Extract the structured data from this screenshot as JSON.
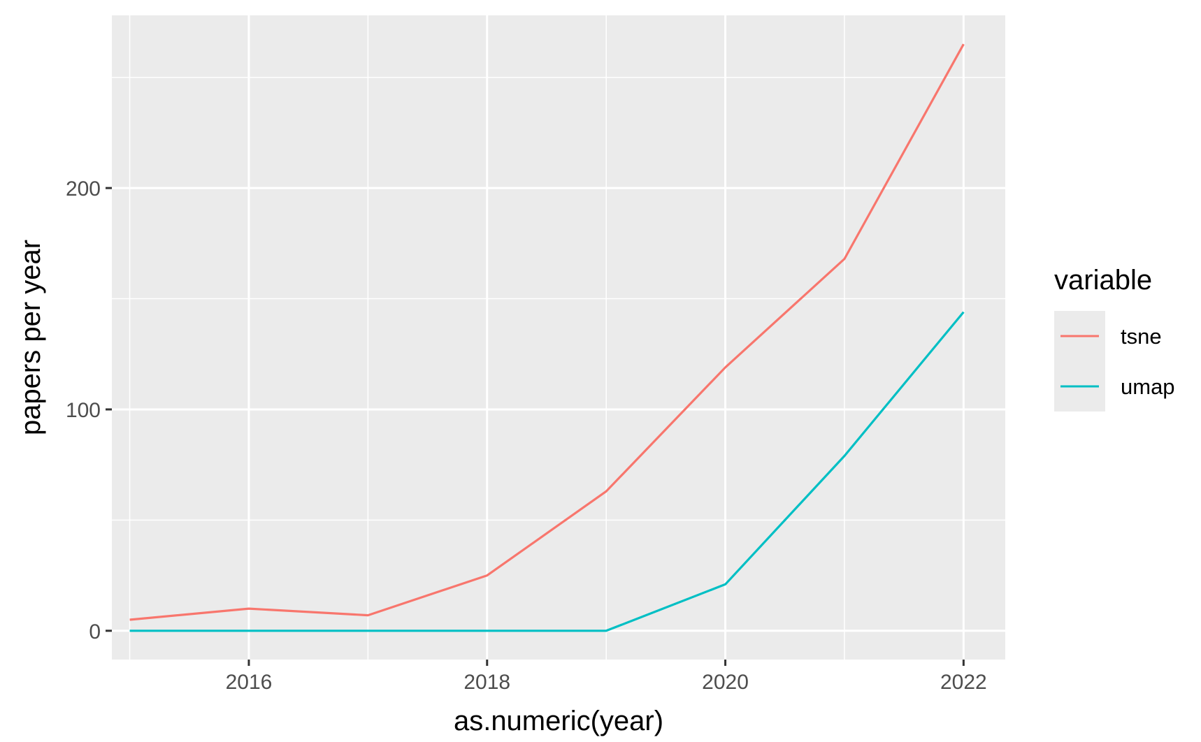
{
  "chart_data": {
    "type": "line",
    "title": "",
    "xlabel": "as.numeric(year)",
    "ylabel": "papers per year",
    "x": [
      2015,
      2016,
      2017,
      2018,
      2019,
      2020,
      2021,
      2022
    ],
    "xlim": [
      2014.85,
      2022.35
    ],
    "ylim": [
      -13,
      278
    ],
    "x_ticks": [
      2016,
      2018,
      2020,
      2022
    ],
    "y_ticks": [
      0,
      100,
      200
    ],
    "x_tick_labels": [
      "2016",
      "2018",
      "2020",
      "2022"
    ],
    "y_tick_labels": [
      "0",
      "100",
      "200"
    ],
    "grid": true,
    "legend": {
      "title": "variable",
      "placement": "right"
    },
    "series": [
      {
        "name": "tsne",
        "color": "#F8766D",
        "values": [
          5,
          10,
          7,
          25,
          63,
          119,
          168,
          265
        ]
      },
      {
        "name": "umap",
        "color": "#00BFC4",
        "values": [
          0,
          0,
          0,
          0,
          0,
          21,
          79,
          144
        ]
      }
    ]
  }
}
